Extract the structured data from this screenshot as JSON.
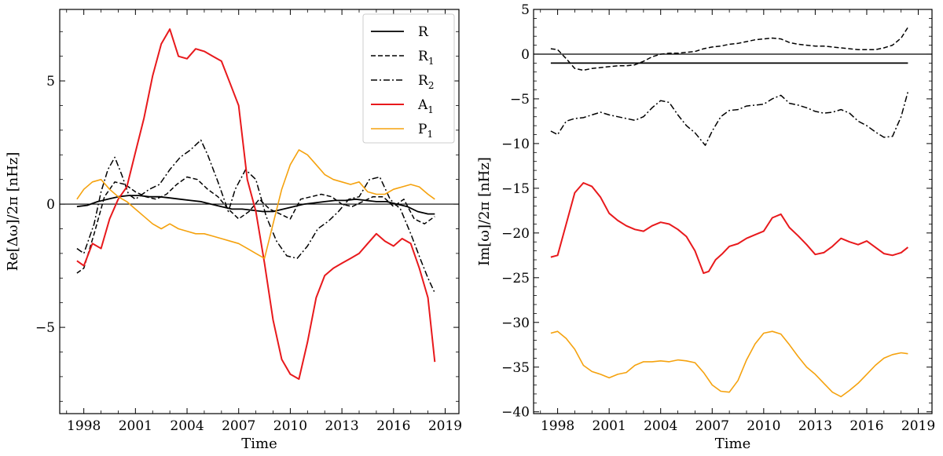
{
  "chart_data": [
    {
      "type": "line",
      "xlabel": "Time",
      "ylabel": "Re[Δω]/2π [nHz]",
      "xlim": [
        1996.6,
        2019.8
      ],
      "ylim": [
        -8.5,
        7.9
      ],
      "xticks": [
        1998,
        2001,
        2004,
        2007,
        2010,
        2013,
        2016,
        2019
      ],
      "yticks": [
        -5,
        0,
        5
      ],
      "hline": 0,
      "legend": {
        "position": "top-right",
        "entries": [
          {
            "base": "R",
            "sub": ""
          },
          {
            "base": "R",
            "sub": "1"
          },
          {
            "base": "R",
            "sub": "2"
          },
          {
            "base": "A",
            "sub": "1"
          },
          {
            "base": "P",
            "sub": "1"
          }
        ]
      },
      "series": [
        {
          "name": "R",
          "color": "#000000",
          "dash": "solid",
          "width": 1.8,
          "x": [
            1997.6,
            1998.2,
            1998.8,
            1999.4,
            2000,
            2000.6,
            2001.2,
            2001.8,
            2002.4,
            2003,
            2003.6,
            2004.2,
            2004.8,
            2005.4,
            2006,
            2006.6,
            2007.2,
            2007.8,
            2008.4,
            2009,
            2009.6,
            2010.2,
            2010.8,
            2011.4,
            2012,
            2012.6,
            2013.2,
            2013.8,
            2014.4,
            2015,
            2015.6,
            2016.2,
            2016.8,
            2017.4,
            2018,
            2018.4
          ],
          "y": [
            -0.1,
            -0.05,
            0.1,
            0.2,
            0.3,
            0.35,
            0.35,
            0.3,
            0.3,
            0.25,
            0.2,
            0.15,
            0.1,
            0.0,
            -0.1,
            -0.2,
            -0.2,
            -0.25,
            -0.3,
            -0.3,
            -0.2,
            -0.1,
            0.0,
            0.05,
            0.1,
            0.15,
            0.15,
            0.2,
            0.15,
            0.1,
            0.1,
            0.0,
            -0.1,
            -0.3,
            -0.4,
            -0.4
          ]
        },
        {
          "name": "R1",
          "color": "#000000",
          "dash": "dashed",
          "width": 1.5,
          "x": [
            1997.6,
            1998,
            1998.6,
            1999.2,
            1999.8,
            2000.4,
            2001,
            2001.6,
            2002.2,
            2002.8,
            2003.4,
            2004,
            2004.6,
            2005.2,
            2005.8,
            2006.4,
            2007,
            2007.6,
            2008.2,
            2008.8,
            2009.4,
            2010,
            2010.6,
            2011.2,
            2011.8,
            2012.4,
            2013,
            2013.6,
            2014.2,
            2014.8,
            2015.4,
            2016,
            2016.6,
            2017.2,
            2017.8,
            2018.4
          ],
          "y": [
            -2.8,
            -2.6,
            -1.2,
            0.3,
            0.9,
            0.8,
            0.5,
            0.3,
            0.2,
            0.4,
            0.8,
            1.1,
            1.0,
            0.6,
            0.3,
            -0.2,
            -0.6,
            -0.3,
            0.2,
            -0.2,
            -0.4,
            -0.6,
            0.2,
            0.3,
            0.4,
            0.3,
            0.0,
            -0.1,
            0.1,
            0.3,
            0.3,
            -0.1,
            0.2,
            -0.6,
            -0.8,
            -0.5
          ]
        },
        {
          "name": "R2",
          "color": "#000000",
          "dash": "dashdot",
          "width": 1.5,
          "x": [
            1997.6,
            1998,
            1998.6,
            1999,
            1999.4,
            1999.8,
            2000.2,
            2000.6,
            2001,
            2001.4,
            2001.8,
            2002.4,
            2003,
            2003.6,
            2004.2,
            2004.8,
            2005.2,
            2005.8,
            2006.4,
            2006.8,
            2007.4,
            2008,
            2008.6,
            2009.2,
            2009.8,
            2010.4,
            2011,
            2011.6,
            2012.2,
            2012.8,
            2013.4,
            2014,
            2014.6,
            2015.2,
            2015.8,
            2016.4,
            2017,
            2017.6,
            2018,
            2018.4
          ],
          "y": [
            -1.8,
            -2.0,
            -0.8,
            0.5,
            1.4,
            1.9,
            1.2,
            0.4,
            0.2,
            0.4,
            0.6,
            0.8,
            1.4,
            1.9,
            2.2,
            2.6,
            2.0,
            0.9,
            -0.3,
            0.6,
            1.4,
            1.0,
            -0.5,
            -1.5,
            -2.1,
            -2.2,
            -1.7,
            -1.0,
            -0.7,
            -0.3,
            0.2,
            0.3,
            1.0,
            1.1,
            0.2,
            -0.2,
            -1.2,
            -2.3,
            -3.0,
            -3.6
          ]
        },
        {
          "name": "A1",
          "color": "#e8191c",
          "dash": "solid",
          "width": 2.0,
          "x": [
            1997.6,
            1998,
            1998.5,
            1999,
            1999.5,
            2000,
            2000.5,
            2001,
            2001.5,
            2002,
            2002.5,
            2003,
            2003.5,
            2004,
            2004.5,
            2005,
            2005.5,
            2006,
            2006.5,
            2007,
            2007.5,
            2008,
            2008.5,
            2009,
            2009.5,
            2010,
            2010.5,
            2011,
            2011.5,
            2012,
            2012.5,
            2013,
            2013.5,
            2014,
            2014.5,
            2015,
            2015.5,
            2016,
            2016.5,
            2017,
            2017.5,
            2018,
            2018.4
          ],
          "y": [
            -2.3,
            -2.5,
            -1.6,
            -1.8,
            -0.6,
            0.2,
            0.7,
            2.1,
            3.5,
            5.2,
            6.5,
            7.1,
            6.0,
            5.9,
            6.3,
            6.2,
            6.0,
            5.8,
            4.9,
            4.0,
            1.0,
            -0.3,
            -2.4,
            -4.7,
            -6.3,
            -6.9,
            -7.1,
            -5.6,
            -3.8,
            -2.9,
            -2.6,
            -2.4,
            -2.2,
            -2.0,
            -1.6,
            -1.2,
            -1.5,
            -1.7,
            -1.4,
            -1.6,
            -2.6,
            -3.8,
            -6.4
          ]
        },
        {
          "name": "P1",
          "color": "#f5a20e",
          "dash": "solid",
          "width": 1.6,
          "x": [
            1997.6,
            1998,
            1998.5,
            1999,
            1999.5,
            2000,
            2000.5,
            2001,
            2001.5,
            2002,
            2002.5,
            2003,
            2003.5,
            2004,
            2004.5,
            2005,
            2005.5,
            2006,
            2006.5,
            2007,
            2007.5,
            2008,
            2008.5,
            2009,
            2009.5,
            2010,
            2010.5,
            2011,
            2011.5,
            2012,
            2012.5,
            2013,
            2013.5,
            2014,
            2014.5,
            2015,
            2015.5,
            2016,
            2016.5,
            2017,
            2017.5,
            2018,
            2018.4
          ],
          "y": [
            0.2,
            0.6,
            0.9,
            1.0,
            0.6,
            0.3,
            0.1,
            -0.2,
            -0.5,
            -0.8,
            -1.0,
            -0.8,
            -1.0,
            -1.1,
            -1.2,
            -1.2,
            -1.3,
            -1.4,
            -1.5,
            -1.6,
            -1.8,
            -2.0,
            -2.2,
            -0.8,
            0.6,
            1.6,
            2.2,
            2.0,
            1.6,
            1.2,
            1.0,
            0.9,
            0.8,
            0.9,
            0.5,
            0.4,
            0.4,
            0.6,
            0.7,
            0.8,
            0.7,
            0.4,
            0.2
          ]
        }
      ]
    },
    {
      "type": "line",
      "xlabel": "Time",
      "ylabel": "Im[ω]/2π [nHz]",
      "xlim": [
        1996.6,
        2019.8
      ],
      "ylim": [
        -40.2,
        5
      ],
      "xticks": [
        1998,
        2001,
        2004,
        2007,
        2010,
        2013,
        2016,
        2019
      ],
      "yticks": [
        5,
        0,
        -5,
        -10,
        -15,
        -20,
        -25,
        -30,
        -35,
        -40
      ],
      "hline": 0,
      "series": [
        {
          "name": "R",
          "color": "#000000",
          "dash": "solid",
          "width": 1.8,
          "x": [
            1997.6,
            2018.4
          ],
          "y": [
            -1.0,
            -1.0
          ]
        },
        {
          "name": "R1",
          "color": "#000000",
          "dash": "dashed",
          "width": 1.5,
          "x": [
            1997.6,
            1998,
            1998.5,
            1999,
            1999.5,
            2000,
            2000.5,
            2001,
            2001.5,
            2002,
            2002.5,
            2003,
            2003.5,
            2004,
            2004.5,
            2005,
            2005.5,
            2006,
            2006.5,
            2007,
            2007.5,
            2008,
            2008.5,
            2009,
            2009.5,
            2010,
            2010.5,
            2011,
            2011.5,
            2012,
            2012.5,
            2013,
            2013.5,
            2014,
            2014.5,
            2015,
            2015.5,
            2016,
            2016.5,
            2017,
            2017.5,
            2018,
            2018.4
          ],
          "y": [
            0.6,
            0.5,
            -0.5,
            -1.6,
            -1.8,
            -1.6,
            -1.5,
            -1.4,
            -1.3,
            -1.3,
            -1.2,
            -0.8,
            -0.3,
            0.0,
            0.1,
            0.1,
            0.2,
            0.3,
            0.6,
            0.8,
            0.9,
            1.1,
            1.2,
            1.4,
            1.6,
            1.7,
            1.8,
            1.7,
            1.3,
            1.1,
            1.0,
            0.9,
            0.9,
            0.8,
            0.7,
            0.6,
            0.5,
            0.5,
            0.5,
            0.7,
            1.0,
            1.8,
            3.0
          ]
        },
        {
          "name": "R2",
          "color": "#000000",
          "dash": "dashdot",
          "width": 1.5,
          "x": [
            1997.6,
            1998,
            1998.5,
            1999,
            1999.5,
            2000,
            2000.5,
            2001,
            2001.5,
            2002,
            2002.5,
            2003,
            2003.5,
            2004,
            2004.5,
            2005,
            2005.5,
            2006,
            2006.3,
            2006.6,
            2007,
            2007.5,
            2008,
            2008.5,
            2009,
            2009.5,
            2010,
            2010.5,
            2011,
            2011.5,
            2012,
            2012.5,
            2013,
            2013.5,
            2014,
            2014.5,
            2015,
            2015.5,
            2016,
            2016.5,
            2017,
            2017.5,
            2018,
            2018.4
          ],
          "y": [
            -8.6,
            -9.0,
            -7.5,
            -7.2,
            -7.1,
            -6.8,
            -6.5,
            -6.8,
            -7.0,
            -7.2,
            -7.4,
            -7.0,
            -6.0,
            -5.2,
            -5.4,
            -6.8,
            -8.0,
            -8.8,
            -9.5,
            -10.2,
            -8.6,
            -7.0,
            -6.3,
            -6.2,
            -5.8,
            -5.7,
            -5.6,
            -5.0,
            -4.6,
            -5.5,
            -5.7,
            -6.0,
            -6.4,
            -6.6,
            -6.5,
            -6.2,
            -6.6,
            -7.5,
            -8.0,
            -8.7,
            -9.3,
            -9.2,
            -7.0,
            -4.2
          ]
        },
        {
          "name": "A1",
          "color": "#e8191c",
          "dash": "solid",
          "width": 2.0,
          "x": [
            1997.6,
            1998,
            1998.5,
            1999,
            1999.5,
            2000,
            2000.5,
            2001,
            2001.5,
            2002,
            2002.5,
            2003,
            2003.5,
            2004,
            2004.5,
            2005,
            2005.5,
            2006,
            2006.5,
            2006.8,
            2007.2,
            2007.6,
            2008,
            2008.5,
            2009,
            2009.5,
            2010,
            2010.5,
            2011,
            2011.5,
            2012,
            2012.5,
            2013,
            2013.5,
            2014,
            2014.5,
            2015,
            2015.5,
            2016,
            2016.5,
            2017,
            2017.5,
            2018,
            2018.4
          ],
          "y": [
            -22.7,
            -22.5,
            -19.0,
            -15.5,
            -14.4,
            -14.8,
            -16.0,
            -17.8,
            -18.6,
            -19.2,
            -19.6,
            -19.8,
            -19.2,
            -18.8,
            -19.0,
            -19.6,
            -20.4,
            -22.0,
            -24.5,
            -24.3,
            -23.0,
            -22.3,
            -21.5,
            -21.2,
            -20.6,
            -20.2,
            -19.8,
            -18.3,
            -17.9,
            -19.4,
            -20.3,
            -21.3,
            -22.4,
            -22.2,
            -21.5,
            -20.6,
            -21.0,
            -21.3,
            -20.9,
            -21.6,
            -22.3,
            -22.5,
            -22.2,
            -21.6
          ]
        },
        {
          "name": "P1",
          "color": "#f5a20e",
          "dash": "solid",
          "width": 1.6,
          "x": [
            1997.6,
            1998,
            1998.5,
            1999,
            1999.5,
            2000,
            2000.5,
            2001,
            2001.5,
            2002,
            2002.5,
            2003,
            2003.5,
            2004,
            2004.5,
            2005,
            2005.5,
            2006,
            2006.5,
            2007,
            2007.5,
            2008,
            2008.5,
            2009,
            2009.5,
            2010,
            2010.5,
            2011,
            2011.5,
            2012,
            2012.5,
            2013,
            2013.5,
            2014,
            2014.5,
            2015,
            2015.5,
            2016,
            2016.5,
            2017,
            2017.5,
            2018,
            2018.4
          ],
          "y": [
            -31.2,
            -31.0,
            -31.8,
            -33.0,
            -34.8,
            -35.5,
            -35.8,
            -36.2,
            -35.8,
            -35.6,
            -34.8,
            -34.4,
            -34.4,
            -34.3,
            -34.4,
            -34.2,
            -34.3,
            -34.5,
            -35.6,
            -37.0,
            -37.7,
            -37.8,
            -36.5,
            -34.2,
            -32.4,
            -31.2,
            -31.0,
            -31.3,
            -32.5,
            -33.8,
            -35.0,
            -35.8,
            -36.8,
            -37.8,
            -38.3,
            -37.6,
            -36.8,
            -35.8,
            -34.8,
            -34.0,
            -33.6,
            -33.4,
            -33.5
          ]
        }
      ]
    }
  ]
}
